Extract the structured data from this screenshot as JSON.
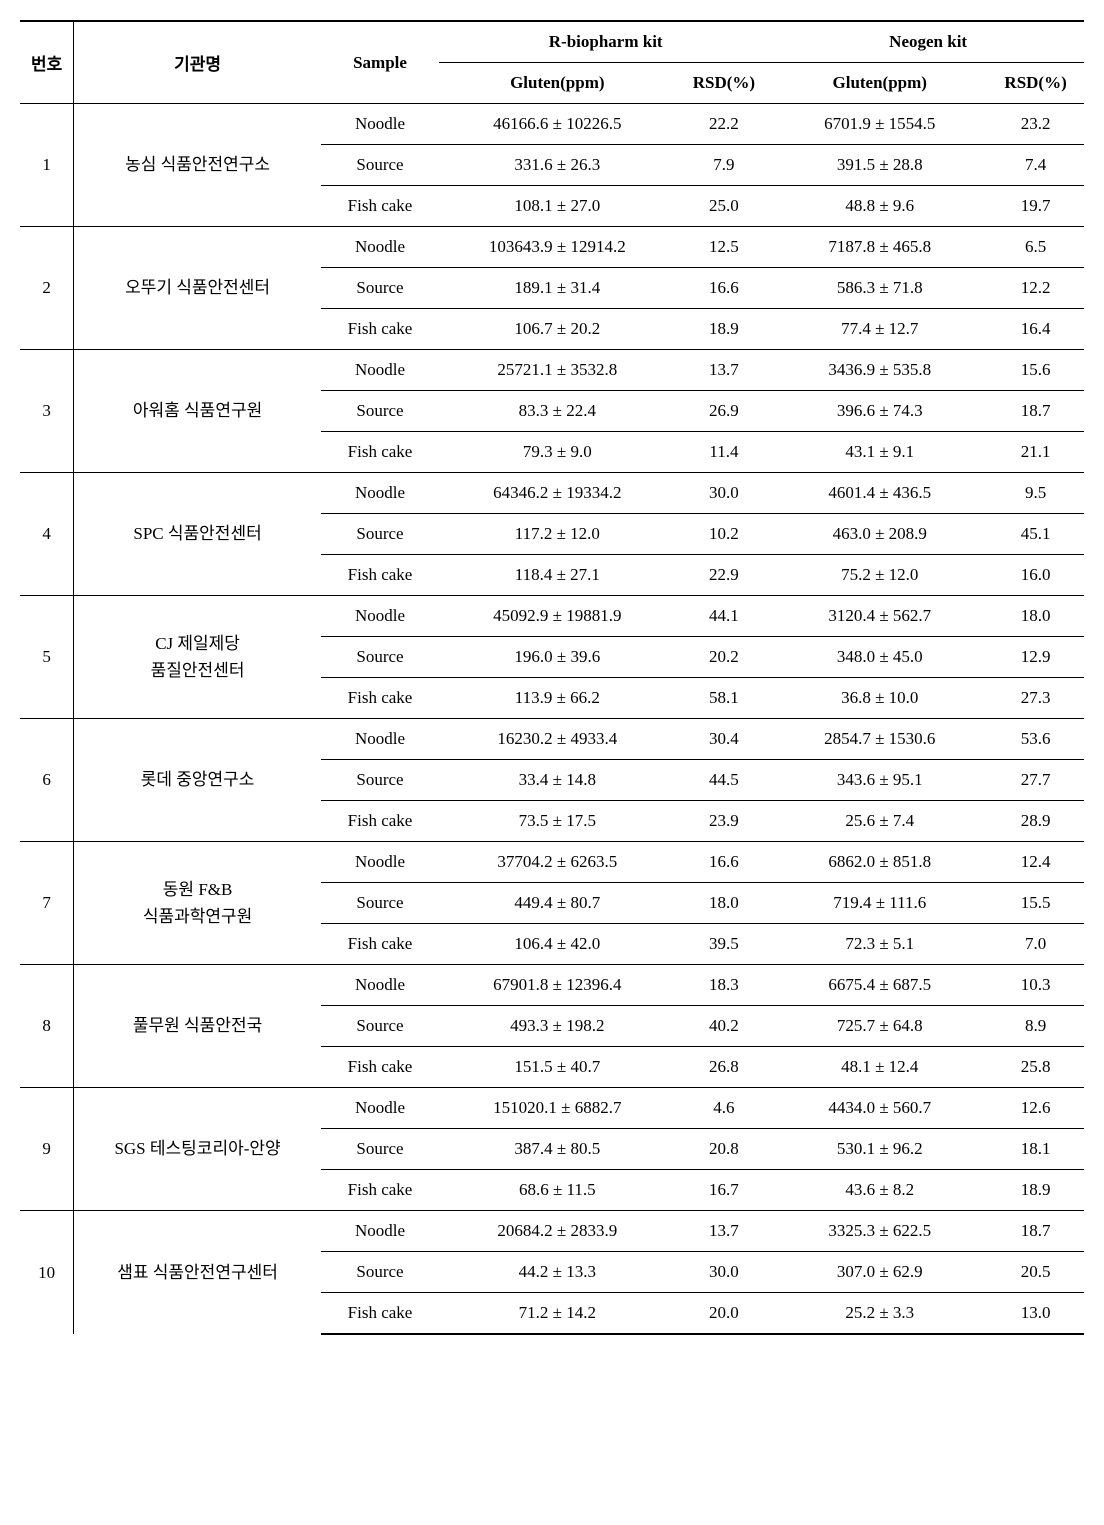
{
  "headers": {
    "no": "번호",
    "org": "기관명",
    "sample": "Sample",
    "kit1": "R-biopharm kit",
    "kit2": "Neogen kit",
    "gluten": "Gluten(ppm)",
    "rsd": "RSD(%)"
  },
  "samples": {
    "noodle": "Noodle",
    "source": "Source",
    "fishcake": "Fish cake"
  },
  "groups": [
    {
      "no": "1",
      "org": "농심 식품안전연구소",
      "rows": [
        {
          "s": "noodle",
          "g1": "46166.6 ± 10226.5",
          "r1": "22.2",
          "g2": "6701.9 ± 1554.5",
          "r2": "23.2"
        },
        {
          "s": "source",
          "g1": "331.6 ± 26.3",
          "r1": "7.9",
          "g2": "391.5 ± 28.8",
          "r2": "7.4"
        },
        {
          "s": "fishcake",
          "g1": "108.1 ± 27.0",
          "r1": "25.0",
          "g2": "48.8 ± 9.6",
          "r2": "19.7"
        }
      ]
    },
    {
      "no": "2",
      "org": "오뚜기 식품안전센터",
      "rows": [
        {
          "s": "noodle",
          "g1": "103643.9 ± 12914.2",
          "r1": "12.5",
          "g2": "7187.8 ± 465.8",
          "r2": "6.5"
        },
        {
          "s": "source",
          "g1": "189.1 ± 31.4",
          "r1": "16.6",
          "g2": "586.3 ± 71.8",
          "r2": "12.2"
        },
        {
          "s": "fishcake",
          "g1": "106.7 ± 20.2",
          "r1": "18.9",
          "g2": "77.4 ± 12.7",
          "r2": "16.4"
        }
      ]
    },
    {
      "no": "3",
      "org": "아워홈 식품연구원",
      "rows": [
        {
          "s": "noodle",
          "g1": "25721.1 ± 3532.8",
          "r1": "13.7",
          "g2": "3436.9 ± 535.8",
          "r2": "15.6"
        },
        {
          "s": "source",
          "g1": "83.3 ± 22.4",
          "r1": "26.9",
          "g2": "396.6 ± 74.3",
          "r2": "18.7"
        },
        {
          "s": "fishcake",
          "g1": "79.3 ± 9.0",
          "r1": "11.4",
          "g2": "43.1 ± 9.1",
          "r2": "21.1"
        }
      ]
    },
    {
      "no": "4",
      "org": "SPC 식품안전센터",
      "rows": [
        {
          "s": "noodle",
          "g1": "64346.2 ± 19334.2",
          "r1": "30.0",
          "g2": "4601.4 ± 436.5",
          "r2": "9.5"
        },
        {
          "s": "source",
          "g1": "117.2 ± 12.0",
          "r1": "10.2",
          "g2": "463.0 ± 208.9",
          "r2": "45.1"
        },
        {
          "s": "fishcake",
          "g1": "118.4 ± 27.1",
          "r1": "22.9",
          "g2": "75.2 ± 12.0",
          "r2": "16.0"
        }
      ]
    },
    {
      "no": "5",
      "org": "CJ 제일제당\n품질안전센터",
      "rows": [
        {
          "s": "noodle",
          "g1": "45092.9 ± 19881.9",
          "r1": "44.1",
          "g2": "3120.4 ± 562.7",
          "r2": "18.0"
        },
        {
          "s": "source",
          "g1": "196.0 ± 39.6",
          "r1": "20.2",
          "g2": "348.0 ± 45.0",
          "r2": "12.9"
        },
        {
          "s": "fishcake",
          "g1": "113.9 ± 66.2",
          "r1": "58.1",
          "g2": "36.8 ± 10.0",
          "r2": "27.3"
        }
      ]
    },
    {
      "no": "6",
      "org": "롯데 중앙연구소",
      "rows": [
        {
          "s": "noodle",
          "g1": "16230.2 ± 4933.4",
          "r1": "30.4",
          "g2": "2854.7 ± 1530.6",
          "r2": "53.6"
        },
        {
          "s": "source",
          "g1": "33.4 ± 14.8",
          "r1": "44.5",
          "g2": "343.6 ± 95.1",
          "r2": "27.7"
        },
        {
          "s": "fishcake",
          "g1": "73.5 ± 17.5",
          "r1": "23.9",
          "g2": "25.6 ± 7.4",
          "r2": "28.9"
        }
      ]
    },
    {
      "no": "7",
      "org": "동원 F&B\n식품과학연구원",
      "rows": [
        {
          "s": "noodle",
          "g1": "37704.2 ± 6263.5",
          "r1": "16.6",
          "g2": "6862.0 ± 851.8",
          "r2": "12.4"
        },
        {
          "s": "source",
          "g1": "449.4 ± 80.7",
          "r1": "18.0",
          "g2": "719.4 ± 111.6",
          "r2": "15.5"
        },
        {
          "s": "fishcake",
          "g1": "106.4 ± 42.0",
          "r1": "39.5",
          "g2": "72.3 ± 5.1",
          "r2": "7.0"
        }
      ]
    },
    {
      "no": "8",
      "org": "풀무원 식품안전국",
      "rows": [
        {
          "s": "noodle",
          "g1": "67901.8 ± 12396.4",
          "r1": "18.3",
          "g2": "6675.4 ± 687.5",
          "r2": "10.3"
        },
        {
          "s": "source",
          "g1": "493.3 ± 198.2",
          "r1": "40.2",
          "g2": "725.7 ± 64.8",
          "r2": "8.9"
        },
        {
          "s": "fishcake",
          "g1": "151.5 ± 40.7",
          "r1": "26.8",
          "g2": "48.1 ± 12.4",
          "r2": "25.8"
        }
      ]
    },
    {
      "no": "9",
      "org": "SGS 테스팅코리아-안양",
      "rows": [
        {
          "s": "noodle",
          "g1": "151020.1 ± 6882.7",
          "r1": "4.6",
          "g2": "4434.0 ± 560.7",
          "r2": "12.6"
        },
        {
          "s": "source",
          "g1": "387.4 ± 80.5",
          "r1": "20.8",
          "g2": "530.1 ± 96.2",
          "r2": "18.1"
        },
        {
          "s": "fishcake",
          "g1": "68.6 ± 11.5",
          "r1": "16.7",
          "g2": "43.6 ± 8.2",
          "r2": "18.9"
        }
      ]
    },
    {
      "no": "10",
      "org": "샘표 식품안전연구센터",
      "rows": [
        {
          "s": "noodle",
          "g1": "20684.2 ± 2833.9",
          "r1": "13.7",
          "g2": "3325.3 ± 622.5",
          "r2": "18.7"
        },
        {
          "s": "source",
          "g1": "44.2 ± 13.3",
          "r1": "30.0",
          "g2": "307.0 ± 62.9",
          "r2": "20.5"
        },
        {
          "s": "fishcake",
          "g1": "71.2 ± 14.2",
          "r1": "20.0",
          "g2": "25.2 ± 3.3",
          "r2": "13.0"
        }
      ]
    }
  ]
}
